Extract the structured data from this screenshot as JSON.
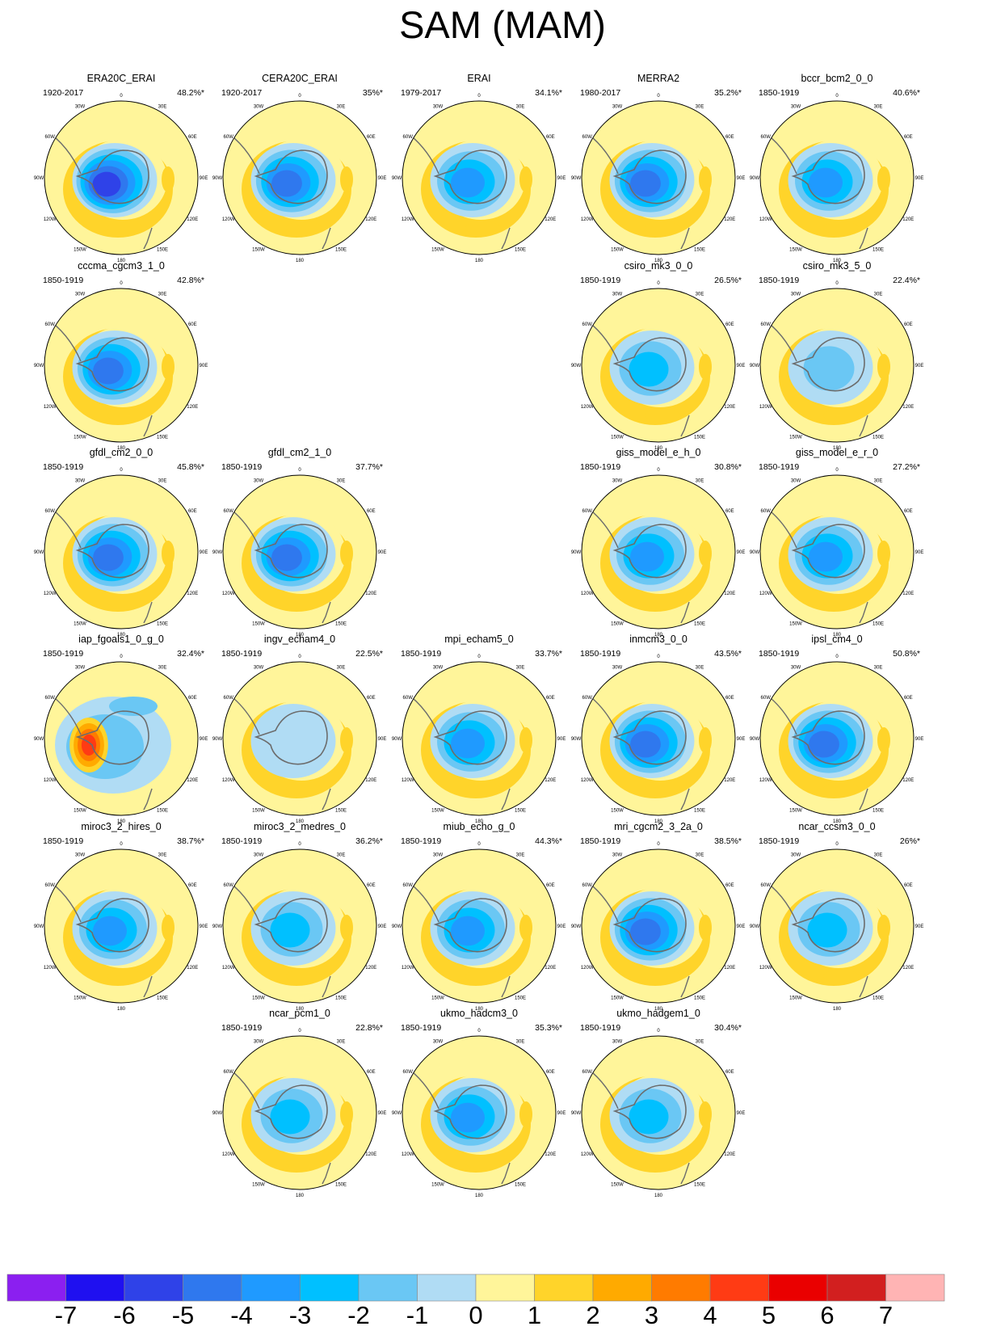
{
  "title": "SAM (MAM)",
  "panels": [
    {
      "name": "ERA20C_ERAI",
      "period": "1920-2017",
      "pct": "48.2%*",
      "row": 0,
      "col": 0,
      "low": -6
    },
    {
      "name": "CERA20C_ERAI",
      "period": "1920-2017",
      "pct": "35%*",
      "row": 0,
      "col": 1,
      "low": -5
    },
    {
      "name": "ERAI",
      "period": "1979-2017",
      "pct": "34.1%*",
      "row": 0,
      "col": 2,
      "low": -4
    },
    {
      "name": "MERRA2",
      "period": "1980-2017",
      "pct": "35.2%*",
      "row": 0,
      "col": 3,
      "low": -5
    },
    {
      "name": "bccr_bcm2_0_0",
      "period": "1850-1919",
      "pct": "40.6%*",
      "row": 0,
      "col": 4,
      "low": -4
    },
    {
      "name": "cccma_cgcm3_1_0",
      "period": "1850-1919",
      "pct": "42.8%*",
      "row": 1,
      "col": 0,
      "low": -5
    },
    {
      "name": "csiro_mk3_0_0",
      "period": "1850-1919",
      "pct": "26.5%*",
      "row": 1,
      "col": 3,
      "low": -3
    },
    {
      "name": "csiro_mk3_5_0",
      "period": "1850-1919",
      "pct": "22.4%*",
      "row": 1,
      "col": 4,
      "low": -2
    },
    {
      "name": "gfdl_cm2_0_0",
      "period": "1850-1919",
      "pct": "45.8%*",
      "row": 2,
      "col": 0,
      "low": -5
    },
    {
      "name": "gfdl_cm2_1_0",
      "period": "1850-1919",
      "pct": "37.7%*",
      "row": 2,
      "col": 1,
      "low": -5
    },
    {
      "name": "giss_model_e_h_0",
      "period": "1850-1919",
      "pct": "30.8%*",
      "row": 2,
      "col": 3,
      "low": -4
    },
    {
      "name": "giss_model_e_r_0",
      "period": "1850-1919",
      "pct": "27.2%*",
      "row": 2,
      "col": 4,
      "low": -4
    },
    {
      "name": "iap_fgoals1_0_g_0",
      "period": "1850-1919",
      "pct": "32.4%*",
      "row": 3,
      "col": 0,
      "low": 4
    },
    {
      "name": "ingv_echam4_0",
      "period": "1850-1919",
      "pct": "22.5%*",
      "row": 3,
      "col": 1,
      "low": -1
    },
    {
      "name": "mpi_echam5_0",
      "period": "1850-1919",
      "pct": "33.7%*",
      "row": 3,
      "col": 2,
      "low": -4
    },
    {
      "name": "inmcm3_0_0",
      "period": "1850-1919",
      "pct": "43.5%*",
      "row": 3,
      "col": 3,
      "low": -5
    },
    {
      "name": "ipsl_cm4_0",
      "period": "1850-1919",
      "pct": "50.8%*",
      "row": 3,
      "col": 4,
      "low": -5
    },
    {
      "name": "miroc3_2_hires_0",
      "period": "1850-1919",
      "pct": "38.7%*",
      "row": 4,
      "col": 0,
      "low": -4
    },
    {
      "name": "miroc3_2_medres_0",
      "period": "1850-1919",
      "pct": "36.2%*",
      "row": 4,
      "col": 1,
      "low": -3
    },
    {
      "name": "miub_echo_g_0",
      "period": "1850-1919",
      "pct": "44.3%*",
      "row": 4,
      "col": 2,
      "low": -4
    },
    {
      "name": "mri_cgcm2_3_2a_0",
      "period": "1850-1919",
      "pct": "38.5%*",
      "row": 4,
      "col": 3,
      "low": -5
    },
    {
      "name": "ncar_ccsm3_0_0",
      "period": "1850-1919",
      "pct": "26%*",
      "row": 4,
      "col": 4,
      "low": -3
    },
    {
      "name": "ncar_pcm1_0",
      "period": "1850-1919",
      "pct": "22.8%*",
      "row": 5,
      "col": 1,
      "low": -3
    },
    {
      "name": "ukmo_hadcm3_0",
      "period": "1850-1919",
      "pct": "35.3%*",
      "row": 5,
      "col": 2,
      "low": -4
    },
    {
      "name": "ukmo_hadgem1_0",
      "period": "1850-1919",
      "pct": "30.4%*",
      "row": 5,
      "col": 3,
      "low": -3
    }
  ],
  "lon_labels": [
    "0",
    "30E",
    "60E",
    "90E",
    "120E",
    "150E",
    "180",
    "150W",
    "120W",
    "90W",
    "60W",
    "30W"
  ],
  "colorbar": {
    "tick_labels": [
      "-7",
      "-6",
      "-5",
      "-4",
      "-3",
      "-2",
      "-1",
      "0",
      "1",
      "2",
      "3",
      "4",
      "5",
      "6",
      "7"
    ],
    "colors": [
      "#8b1ff0",
      "#1f10f0",
      "#2f42e8",
      "#2f78ee",
      "#1f9aff",
      "#00c0ff",
      "#6ac7f4",
      "#b0dcf4",
      "#fff59a",
      "#ffd42a",
      "#ffaa00",
      "#ff7b00",
      "#ff3b14",
      "#ea0000",
      "#d21f1f",
      "#ffb4b4"
    ]
  }
}
